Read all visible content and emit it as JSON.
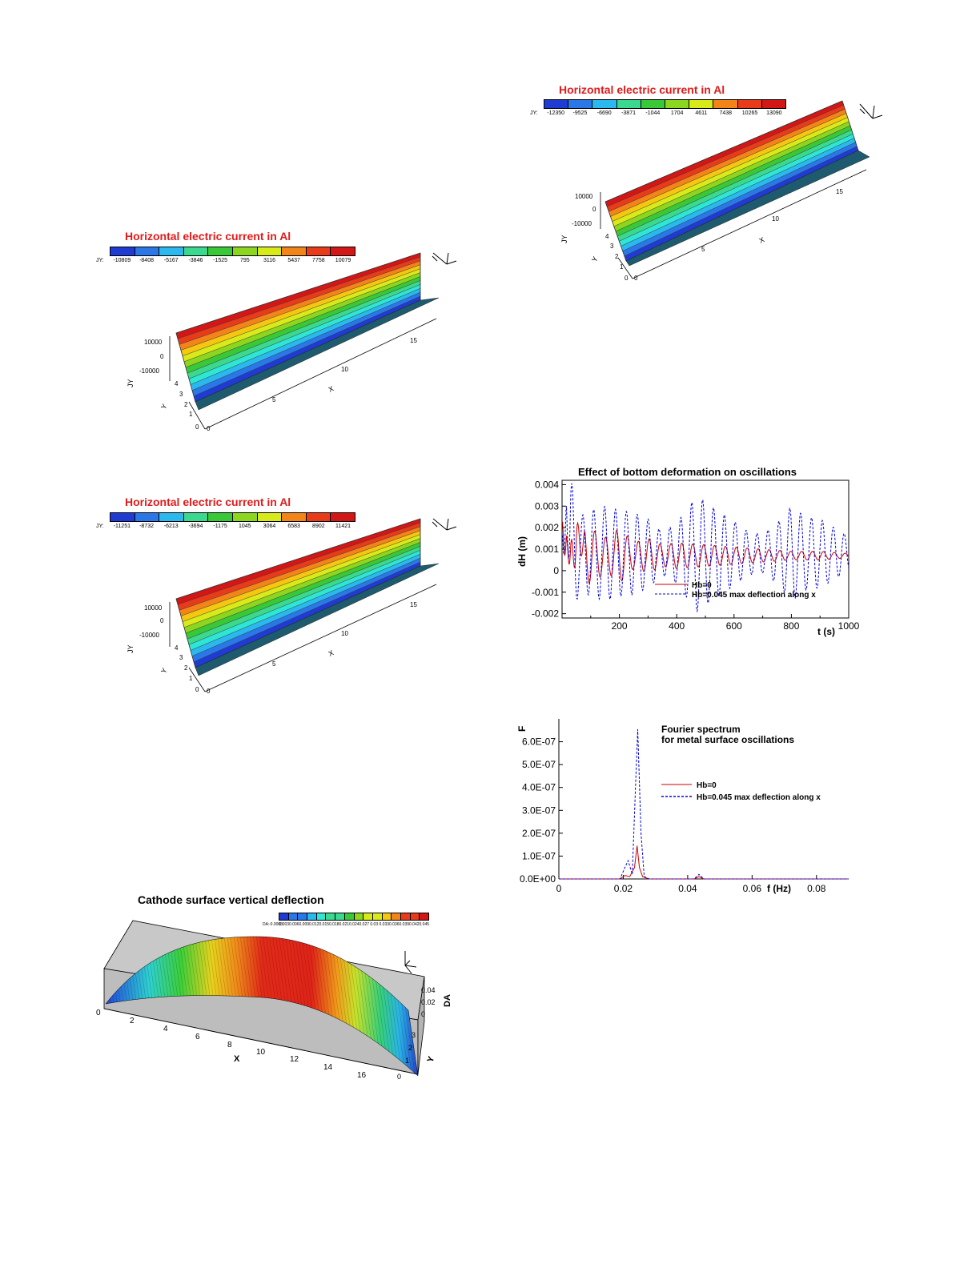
{
  "colors": {
    "contour": [
      "#1f3bd4",
      "#2a78e8",
      "#2bb8ee",
      "#2ee6d6",
      "#3bd88f",
      "#39c838",
      "#8dd61f",
      "#d9ea1a",
      "#f5c711",
      "#f2841a",
      "#e83b1a",
      "#d31616"
    ],
    "red": "#cc0000",
    "blue": "#0000dd",
    "axis": "#000000"
  },
  "chart_data": [
    {
      "type": "surface",
      "title": "Horizontal electric current in Al",
      "legend_prefix": "JY:",
      "legend_ticks": [
        "-10809",
        "-8408",
        "-5167",
        "-3846",
        "-1525",
        "795",
        "3116",
        "5437",
        "7758",
        "10079"
      ],
      "z_ticks": [
        "10000",
        "0",
        "-10000"
      ],
      "z_label": "JY",
      "y_ticks": [
        "4",
        "3",
        "2",
        "1",
        "0"
      ],
      "y_label": "Y",
      "x_ticks": [
        "0",
        "5",
        "10",
        "15"
      ],
      "x_label": "X"
    },
    {
      "type": "surface",
      "title": "Horizontal electric current in Al",
      "legend_prefix": "JY:",
      "legend_ticks": [
        "-11251",
        "-8732",
        "-6213",
        "-3694",
        "-1175",
        "1045",
        "3064",
        "6583",
        "8902",
        "11421"
      ],
      "z_ticks": [
        "10000",
        "0",
        "-10000"
      ],
      "z_label": "JY",
      "y_ticks": [
        "4",
        "3",
        "2",
        "1",
        "0"
      ],
      "y_label": "Y",
      "x_ticks": [
        "0",
        "5",
        "10",
        "15"
      ],
      "x_label": "X"
    },
    {
      "type": "surface",
      "title": "Horizontal electric current in Al",
      "legend_prefix": "JY:",
      "legend_ticks": [
        "-12350",
        "-9525",
        "-6690",
        "-3871",
        "-1044",
        "1704",
        "4611",
        "7438",
        "10265",
        "13090"
      ],
      "z_ticks": [
        "10000",
        "0",
        "-10000"
      ],
      "z_label": "JY",
      "y_ticks": [
        "4",
        "3",
        "2",
        "1",
        "0"
      ],
      "y_label": "Y",
      "x_ticks": [
        "0",
        "5",
        "10",
        "15"
      ],
      "x_label": "X"
    },
    {
      "type": "surface",
      "title": "Cathode surface vertical deflection",
      "legend_prefix": "DA:",
      "legend_ticks": [
        "-0.0003",
        "0.003",
        "0.006",
        "0.009",
        "0.012",
        "0.015",
        "0.018",
        "0.021",
        "0.024",
        "0.027",
        "0.03",
        "0.033",
        "0.036",
        "0.039",
        "0.042",
        "0.045"
      ],
      "z_ticks": [
        "0.04",
        "0.02",
        "0"
      ],
      "z_label": "DA",
      "y_ticks": [
        "3",
        "2",
        "1",
        "0"
      ],
      "y_label": "Y",
      "x_ticks": [
        "0",
        "2",
        "4",
        "6",
        "8",
        "10",
        "12",
        "14",
        "16"
      ],
      "x_label": "X"
    },
    {
      "type": "line",
      "title": "Effect of bottom deformation on oscillations",
      "xlabel": "t (s)",
      "ylabel": "dH (m)",
      "xlim": [
        0,
        1000
      ],
      "ylim": [
        -0.0022,
        0.0042
      ],
      "x_ticks": [
        "200",
        "400",
        "600",
        "800",
        "1000"
      ],
      "y_ticks": [
        "0.004",
        "0.003",
        "0.002",
        "0.001",
        "0",
        "-0.001",
        "-0.002"
      ],
      "series": [
        {
          "name": "Hb=0",
          "period": 38,
          "points": [
            [
              0,
              0.0028
            ],
            [
              15,
              -0.0005
            ],
            [
              30,
              0.0024
            ],
            [
              50,
              -0.0015
            ],
            [
              80,
              0.0021
            ],
            [
              120,
              0.0018
            ],
            [
              160,
              0.0015
            ],
            [
              200,
              0.002
            ],
            [
              250,
              0.0013
            ],
            [
              300,
              0.0015
            ],
            [
              350,
              0.0012
            ],
            [
              400,
              0.0013
            ],
            [
              500,
              0.0012
            ],
            [
              600,
              0.0011
            ],
            [
              700,
              0.001
            ],
            [
              800,
              0.0009
            ],
            [
              900,
              0.0009
            ],
            [
              1000,
              0.0008
            ]
          ]
        },
        {
          "name": "Hb=0.045 max deflection along x",
          "period": 38,
          "points": [
            [
              0,
              0.0028
            ],
            [
              15,
              -0.0016
            ],
            [
              30,
              0.0043
            ],
            [
              60,
              0.0025
            ],
            [
              100,
              0.0028
            ],
            [
              150,
              0.003
            ],
            [
              200,
              0.0028
            ],
            [
              250,
              0.0027
            ],
            [
              300,
              0.0024
            ],
            [
              350,
              0.0018
            ],
            [
              400,
              0.0022
            ],
            [
              470,
              0.0035
            ],
            [
              520,
              0.003
            ],
            [
              600,
              0.0023
            ],
            [
              650,
              0.0018
            ],
            [
              700,
              0.0017
            ],
            [
              750,
              0.0022
            ],
            [
              800,
              0.003
            ],
            [
              850,
              0.0025
            ],
            [
              900,
              0.0024
            ],
            [
              1000,
              0.0016
            ]
          ]
        }
      ],
      "legend": [
        "Hb=0",
        "Hb=0.045 max deflection along x"
      ]
    },
    {
      "type": "line",
      "title": "Fourier spectrum",
      "subtitle": "for metal surface oscillations",
      "xlabel": "f (Hz)",
      "ylabel": "F",
      "xlim": [
        0,
        0.09
      ],
      "ylim": [
        0,
        7e-07
      ],
      "x_ticks": [
        "0",
        "0.02",
        "0.04",
        "0.06",
        "0.08"
      ],
      "y_ticks": [
        "6.0E-07",
        "5.0E-07",
        "4.0E-07",
        "3.0E-07",
        "2.0E-07",
        "1.0E-07",
        "0.0E+00"
      ],
      "series": [
        {
          "name": "Hb=0",
          "x": [
            0,
            0.019,
            0.0205,
            0.022,
            0.0235,
            0.0243,
            0.025,
            0.026,
            0.028,
            0.042,
            0.0435,
            0.045,
            0.09
          ],
          "y": [
            0,
            0,
            1.5e-08,
            1e-08,
            5e-08,
            1.45e-07,
            5e-08,
            1e-08,
            0,
            0,
            1e-08,
            0,
            0
          ]
        },
        {
          "name": "Hb=0.045 max deflection along x",
          "x": [
            0,
            0.019,
            0.0205,
            0.0215,
            0.0228,
            0.0238,
            0.0245,
            0.0255,
            0.0265,
            0.028,
            0.042,
            0.0435,
            0.045,
            0.09
          ],
          "y": [
            0,
            0,
            5e-08,
            8e-08,
            2e-08,
            4e-07,
            6.55e-07,
            2e-07,
            1e-08,
            0,
            0,
            2e-08,
            0,
            0
          ]
        }
      ],
      "legend": [
        "Hb=0",
        "Hb=0.045 max deflection along x"
      ]
    }
  ]
}
